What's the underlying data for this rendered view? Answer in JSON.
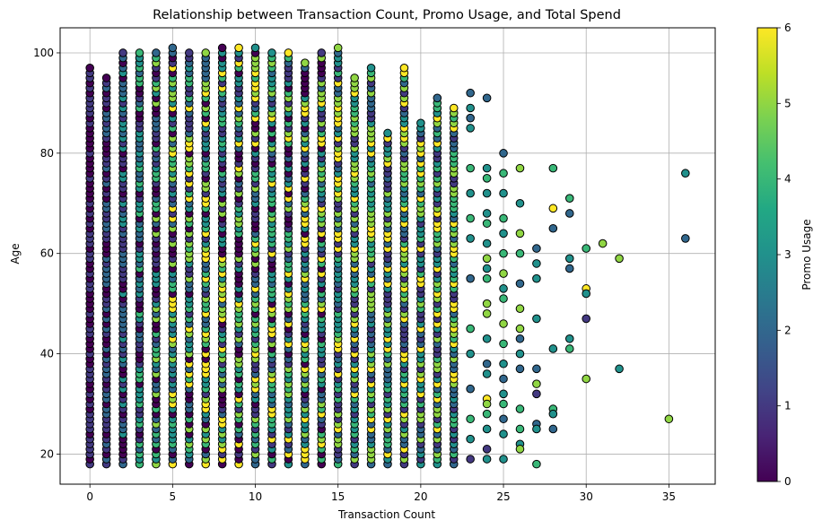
{
  "chart_data": {
    "type": "scatter",
    "title": "Relationship between Transaction Count, Promo Usage, and Total Spend",
    "xlabel": "Transaction Count",
    "ylabel": "Age",
    "xlim": [
      -1.8,
      37.8
    ],
    "ylim": [
      14,
      105
    ],
    "x_ticks": [
      0,
      5,
      10,
      15,
      20,
      25,
      30,
      35
    ],
    "y_ticks": [
      20,
      40,
      60,
      80,
      100
    ],
    "grid": true,
    "colormap": "viridis",
    "colorbar": {
      "label": "Promo Usage",
      "range": [
        0,
        6
      ],
      "ticks": [
        0,
        1,
        2,
        3,
        4,
        5,
        6
      ]
    },
    "marker": {
      "shape": "circle",
      "edgecolor": "#000000"
    },
    "dense_columns": [
      {
        "x": 0,
        "age_range": [
          18,
          97
        ],
        "promo_range": [
          0,
          1
        ]
      },
      {
        "x": 1,
        "age_range": [
          18,
          95
        ],
        "promo_range": [
          0,
          2
        ]
      },
      {
        "x": 2,
        "age_range": [
          18,
          100
        ],
        "promo_range": [
          0,
          3
        ]
      },
      {
        "x": 3,
        "age_range": [
          18,
          100
        ],
        "promo_range": [
          0,
          4
        ]
      },
      {
        "x": 4,
        "age_range": [
          18,
          100
        ],
        "promo_range": [
          0,
          5
        ]
      },
      {
        "x": 5,
        "age_range": [
          18,
          101
        ],
        "promo_range": [
          0,
          6
        ]
      },
      {
        "x": 6,
        "age_range": [
          18,
          100
        ],
        "promo_range": [
          0,
          6
        ]
      },
      {
        "x": 7,
        "age_range": [
          18,
          100
        ],
        "promo_range": [
          0,
          6
        ]
      },
      {
        "x": 8,
        "age_range": [
          18,
          101
        ],
        "promo_range": [
          0,
          6
        ]
      },
      {
        "x": 9,
        "age_range": [
          18,
          101
        ],
        "promo_range": [
          0,
          6
        ]
      },
      {
        "x": 10,
        "age_range": [
          18,
          101
        ],
        "promo_range": [
          0,
          6
        ]
      },
      {
        "x": 11,
        "age_range": [
          18,
          100
        ],
        "promo_range": [
          0,
          6
        ]
      },
      {
        "x": 12,
        "age_range": [
          18,
          100
        ],
        "promo_range": [
          0,
          6
        ]
      },
      {
        "x": 13,
        "age_range": [
          18,
          98
        ],
        "promo_range": [
          0,
          6
        ]
      },
      {
        "x": 14,
        "age_range": [
          18,
          100
        ],
        "promo_range": [
          0,
          6
        ]
      },
      {
        "x": 15,
        "age_range": [
          18,
          101
        ],
        "promo_range": [
          1,
          6
        ]
      },
      {
        "x": 16,
        "age_range": [
          18,
          95
        ],
        "promo_range": [
          1,
          6
        ]
      },
      {
        "x": 17,
        "age_range": [
          18,
          97
        ],
        "promo_range": [
          1,
          6
        ]
      },
      {
        "x": 18,
        "age_range": [
          18,
          84
        ],
        "promo_range": [
          1,
          6
        ]
      },
      {
        "x": 19,
        "age_range": [
          18,
          97
        ],
        "promo_range": [
          1,
          6
        ]
      },
      {
        "x": 20,
        "age_range": [
          18,
          86
        ],
        "promo_range": [
          1,
          6
        ]
      },
      {
        "x": 21,
        "age_range": [
          18,
          91
        ],
        "promo_range": [
          1,
          6
        ]
      },
      {
        "x": 22,
        "age_range": [
          18,
          89
        ],
        "promo_range": [
          1,
          6
        ]
      }
    ],
    "points": [
      {
        "x": 23,
        "y": 92,
        "promo": 2
      },
      {
        "x": 23,
        "y": 89,
        "promo": 3
      },
      {
        "x": 23,
        "y": 87,
        "promo": 2
      },
      {
        "x": 23,
        "y": 85,
        "promo": 3
      },
      {
        "x": 23,
        "y": 77,
        "promo": 4
      },
      {
        "x": 23,
        "y": 72,
        "promo": 3
      },
      {
        "x": 23,
        "y": 67,
        "promo": 4
      },
      {
        "x": 23,
        "y": 63,
        "promo": 3
      },
      {
        "x": 23,
        "y": 55,
        "promo": 2
      },
      {
        "x": 23,
        "y": 45,
        "promo": 4
      },
      {
        "x": 23,
        "y": 40,
        "promo": 3
      },
      {
        "x": 23,
        "y": 33,
        "promo": 2
      },
      {
        "x": 23,
        "y": 27,
        "promo": 4
      },
      {
        "x": 23,
        "y": 23,
        "promo": 3
      },
      {
        "x": 23,
        "y": 19,
        "promo": 1
      },
      {
        "x": 24,
        "y": 91,
        "promo": 2
      },
      {
        "x": 24,
        "y": 77,
        "promo": 3
      },
      {
        "x": 24,
        "y": 75,
        "promo": 4
      },
      {
        "x": 24,
        "y": 72,
        "promo": 3
      },
      {
        "x": 24,
        "y": 68,
        "promo": 3
      },
      {
        "x": 24,
        "y": 66,
        "promo": 4
      },
      {
        "x": 24,
        "y": 62,
        "promo": 3
      },
      {
        "x": 24,
        "y": 59,
        "promo": 5
      },
      {
        "x": 24,
        "y": 57,
        "promo": 3
      },
      {
        "x": 24,
        "y": 55,
        "promo": 4
      },
      {
        "x": 24,
        "y": 50,
        "promo": 5
      },
      {
        "x": 24,
        "y": 48,
        "promo": 5
      },
      {
        "x": 24,
        "y": 43,
        "promo": 3
      },
      {
        "x": 24,
        "y": 38,
        "promo": 2
      },
      {
        "x": 24,
        "y": 36,
        "promo": 3
      },
      {
        "x": 24,
        "y": 31,
        "promo": 6
      },
      {
        "x": 24,
        "y": 30,
        "promo": 5
      },
      {
        "x": 24,
        "y": 28,
        "promo": 4
      },
      {
        "x": 24,
        "y": 25,
        "promo": 3
      },
      {
        "x": 24,
        "y": 21,
        "promo": 1
      },
      {
        "x": 24,
        "y": 19,
        "promo": 3
      },
      {
        "x": 25,
        "y": 80,
        "promo": 2
      },
      {
        "x": 25,
        "y": 76,
        "promo": 4
      },
      {
        "x": 25,
        "y": 72,
        "promo": 3
      },
      {
        "x": 25,
        "y": 67,
        "promo": 4
      },
      {
        "x": 25,
        "y": 64,
        "promo": 3
      },
      {
        "x": 25,
        "y": 60,
        "promo": 4
      },
      {
        "x": 25,
        "y": 56,
        "promo": 5
      },
      {
        "x": 25,
        "y": 53,
        "promo": 3
      },
      {
        "x": 25,
        "y": 51,
        "promo": 4
      },
      {
        "x": 25,
        "y": 46,
        "promo": 5
      },
      {
        "x": 25,
        "y": 42,
        "promo": 4
      },
      {
        "x": 25,
        "y": 38,
        "promo": 3
      },
      {
        "x": 25,
        "y": 35,
        "promo": 2
      },
      {
        "x": 25,
        "y": 32,
        "promo": 3
      },
      {
        "x": 25,
        "y": 30,
        "promo": 4
      },
      {
        "x": 25,
        "y": 27,
        "promo": 2
      },
      {
        "x": 25,
        "y": 24,
        "promo": 3
      },
      {
        "x": 25,
        "y": 19,
        "promo": 3
      },
      {
        "x": 26,
        "y": 77,
        "promo": 5
      },
      {
        "x": 26,
        "y": 70,
        "promo": 3
      },
      {
        "x": 26,
        "y": 64,
        "promo": 5
      },
      {
        "x": 26,
        "y": 60,
        "promo": 4
      },
      {
        "x": 26,
        "y": 54,
        "promo": 2
      },
      {
        "x": 26,
        "y": 49,
        "promo": 5
      },
      {
        "x": 26,
        "y": 45,
        "promo": 5
      },
      {
        "x": 26,
        "y": 43,
        "promo": 2
      },
      {
        "x": 26,
        "y": 40,
        "promo": 3
      },
      {
        "x": 26,
        "y": 37,
        "promo": 2
      },
      {
        "x": 26,
        "y": 29,
        "promo": 4
      },
      {
        "x": 26,
        "y": 25,
        "promo": 4
      },
      {
        "x": 26,
        "y": 22,
        "promo": 3
      },
      {
        "x": 26,
        "y": 21,
        "promo": 5
      },
      {
        "x": 27,
        "y": 61,
        "promo": 2
      },
      {
        "x": 27,
        "y": 58,
        "promo": 3
      },
      {
        "x": 27,
        "y": 55,
        "promo": 3
      },
      {
        "x": 27,
        "y": 47,
        "promo": 3
      },
      {
        "x": 27,
        "y": 37,
        "promo": 2
      },
      {
        "x": 27,
        "y": 34,
        "promo": 5
      },
      {
        "x": 27,
        "y": 32,
        "promo": 1
      },
      {
        "x": 27,
        "y": 26,
        "promo": 2
      },
      {
        "x": 27,
        "y": 25,
        "promo": 3
      },
      {
        "x": 27,
        "y": 18,
        "promo": 4
      },
      {
        "x": 28,
        "y": 77,
        "promo": 4
      },
      {
        "x": 28,
        "y": 69,
        "promo": 6
      },
      {
        "x": 28,
        "y": 65,
        "promo": 2
      },
      {
        "x": 28,
        "y": 41,
        "promo": 3
      },
      {
        "x": 28,
        "y": 29,
        "promo": 4
      },
      {
        "x": 28,
        "y": 28,
        "promo": 3
      },
      {
        "x": 28,
        "y": 25,
        "promo": 2
      },
      {
        "x": 29,
        "y": 71,
        "promo": 4
      },
      {
        "x": 29,
        "y": 68,
        "promo": 2
      },
      {
        "x": 29,
        "y": 59,
        "promo": 3
      },
      {
        "x": 29,
        "y": 57,
        "promo": 2
      },
      {
        "x": 29,
        "y": 43,
        "promo": 3
      },
      {
        "x": 29,
        "y": 41,
        "promo": 4
      },
      {
        "x": 30,
        "y": 61,
        "promo": 4
      },
      {
        "x": 30,
        "y": 53,
        "promo": 6
      },
      {
        "x": 30,
        "y": 52,
        "promo": 3
      },
      {
        "x": 30,
        "y": 47,
        "promo": 1
      },
      {
        "x": 30,
        "y": 35,
        "promo": 5
      },
      {
        "x": 31,
        "y": 62,
        "promo": 5
      },
      {
        "x": 32,
        "y": 59,
        "promo": 5
      },
      {
        "x": 32,
        "y": 37,
        "promo": 3
      },
      {
        "x": 35,
        "y": 27,
        "promo": 5
      },
      {
        "x": 36,
        "y": 76,
        "promo": 3
      },
      {
        "x": 36,
        "y": 63,
        "promo": 2
      }
    ]
  }
}
